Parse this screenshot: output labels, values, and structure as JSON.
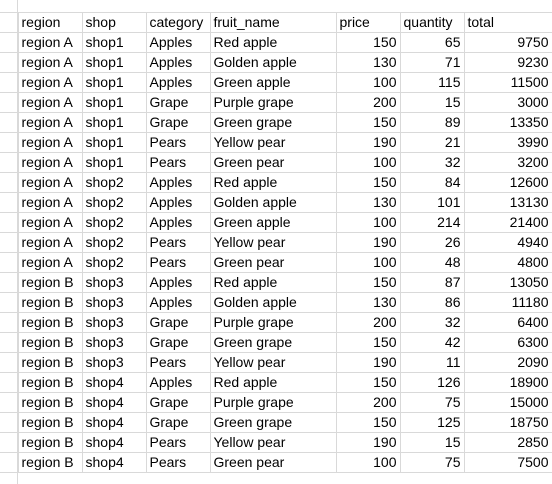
{
  "sheet": {
    "headers": [
      "region",
      "shop",
      "category",
      "fruit_name",
      "price",
      "quantity",
      "total"
    ],
    "rows": [
      [
        "region A",
        "shop1",
        "Apples",
        "Red apple",
        "150",
        "65",
        "9750"
      ],
      [
        "region A",
        "shop1",
        "Apples",
        "Golden apple",
        "130",
        "71",
        "9230"
      ],
      [
        "region A",
        "shop1",
        "Apples",
        "Green apple",
        "100",
        "115",
        "11500"
      ],
      [
        "region A",
        "shop1",
        "Grape",
        "Purple grape",
        "200",
        "15",
        "3000"
      ],
      [
        "region A",
        "shop1",
        "Grape",
        "Green grape",
        "150",
        "89",
        "13350"
      ],
      [
        "region A",
        "shop1",
        "Pears",
        "Yellow pear",
        "190",
        "21",
        "3990"
      ],
      [
        "region A",
        "shop1",
        "Pears",
        "Green pear",
        "100",
        "32",
        "3200"
      ],
      [
        "region A",
        "shop2",
        "Apples",
        "Red apple",
        "150",
        "84",
        "12600"
      ],
      [
        "region A",
        "shop2",
        "Apples",
        "Golden apple",
        "130",
        "101",
        "13130"
      ],
      [
        "region A",
        "shop2",
        "Apples",
        "Green apple",
        "100",
        "214",
        "21400"
      ],
      [
        "region A",
        "shop2",
        "Pears",
        "Yellow pear",
        "190",
        "26",
        "4940"
      ],
      [
        "region A",
        "shop2",
        "Pears",
        "Green pear",
        "100",
        "48",
        "4800"
      ],
      [
        "region B",
        "shop3",
        "Apples",
        "Red apple",
        "150",
        "87",
        "13050"
      ],
      [
        "region B",
        "shop3",
        "Apples",
        "Golden apple",
        "130",
        "86",
        "11180"
      ],
      [
        "region B",
        "shop3",
        "Grape",
        "Purple grape",
        "200",
        "32",
        "6400"
      ],
      [
        "region B",
        "shop3",
        "Grape",
        "Green grape",
        "150",
        "42",
        "6300"
      ],
      [
        "region B",
        "shop3",
        "Pears",
        "Yellow pear",
        "190",
        "11",
        "2090"
      ],
      [
        "region B",
        "shop4",
        "Apples",
        "Red apple",
        "150",
        "126",
        "18900"
      ],
      [
        "region B",
        "shop4",
        "Grape",
        "Purple grape",
        "200",
        "75",
        "15000"
      ],
      [
        "region B",
        "shop4",
        "Grape",
        "Green grape",
        "150",
        "125",
        "18750"
      ],
      [
        "region B",
        "shop4",
        "Pears",
        "Yellow pear",
        "190",
        "15",
        "2850"
      ],
      [
        "region B",
        "shop4",
        "Pears",
        "Green pear",
        "100",
        "75",
        "7500"
      ]
    ]
  }
}
